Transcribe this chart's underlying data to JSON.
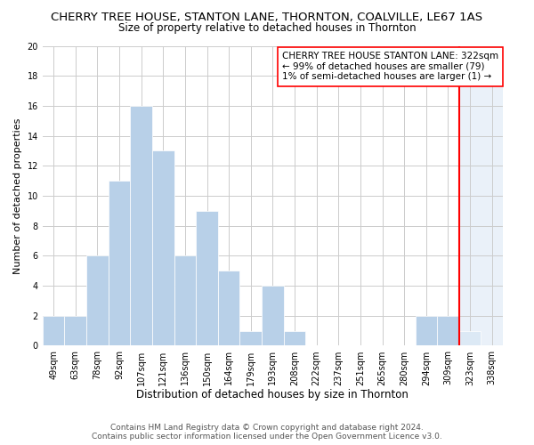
{
  "title": "CHERRY TREE HOUSE, STANTON LANE, THORNTON, COALVILLE, LE67 1AS",
  "subtitle": "Size of property relative to detached houses in Thornton",
  "xlabel": "Distribution of detached houses by size in Thornton",
  "ylabel": "Number of detached properties",
  "categories": [
    "49sqm",
    "63sqm",
    "78sqm",
    "92sqm",
    "107sqm",
    "121sqm",
    "136sqm",
    "150sqm",
    "164sqm",
    "179sqm",
    "193sqm",
    "208sqm",
    "222sqm",
    "237sqm",
    "251sqm",
    "265sqm",
    "280sqm",
    "294sqm",
    "309sqm",
    "323sqm",
    "338sqm"
  ],
  "values": [
    2,
    2,
    6,
    11,
    16,
    13,
    6,
    9,
    5,
    1,
    4,
    1,
    0,
    0,
    0,
    0,
    0,
    2,
    2,
    1,
    0
  ],
  "bar_color": "#b8d0e8",
  "bar_edge_color": "#b8d0e8",
  "highlight_color": "#dce9f5",
  "redline_index": 19,
  "ylim": [
    0,
    20
  ],
  "yticks": [
    0,
    2,
    4,
    6,
    8,
    10,
    12,
    14,
    16,
    18,
    20
  ],
  "annotation_title": "CHERRY TREE HOUSE STANTON LANE: 322sqm",
  "annotation_line1": "← 99% of detached houses are smaller (79)",
  "annotation_line2": "1% of semi-detached houses are larger (1) →",
  "footer": "Contains HM Land Registry data © Crown copyright and database right 2024.\nContains public sector information licensed under the Open Government Licence v3.0.",
  "title_fontsize": 9.5,
  "subtitle_fontsize": 8.5,
  "xlabel_fontsize": 8.5,
  "ylabel_fontsize": 8,
  "tick_fontsize": 7,
  "annotation_fontsize": 7.5,
  "footer_fontsize": 6.5,
  "background_color": "#ffffff",
  "grid_color": "#cccccc"
}
